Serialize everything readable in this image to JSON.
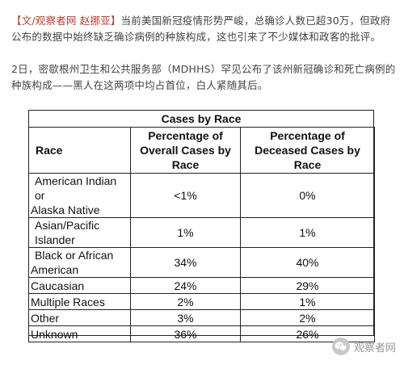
{
  "article": {
    "paragraph1_source": "【文/观察者网 赵挪亚】",
    "paragraph1_body": "当前美国新冠疫情形势严峻，总确诊人数已超30万，但政府公布的数据中始终缺乏确诊病例的种族构成，这也引来了不少媒体和政客的批评。",
    "paragraph2": "2日，密歇根州卫生和公共服务部（MDHHS）罕见公布了该州新冠确诊和死亡病例的种族构成——黑人在这两项中均占首位，白人紧随其后。"
  },
  "table": {
    "caption": "Cases by Race",
    "headers": {
      "race": "Race",
      "overall": "Percentage of Overall Cases by Race",
      "deceased": "Percentage of Deceased Cases by Race"
    },
    "rows": [
      {
        "race_line1": "American Indian or",
        "race_line2": "Alaska Native",
        "overall": "<1%",
        "deceased": "0%"
      },
      {
        "race_line1": "Asian/Pacific",
        "race_line2": "Islander",
        "overall": "1%",
        "deceased": "1%"
      },
      {
        "race_line1": "Black or African",
        "race_line2": "American",
        "overall": "34%",
        "deceased": "40%"
      },
      {
        "race": "Caucasian",
        "overall": "24%",
        "deceased": "29%"
      },
      {
        "race": "Multiple Races",
        "overall": "2%",
        "deceased": "1%"
      },
      {
        "race": "Other",
        "overall": "3%",
        "deceased": "2%"
      },
      {
        "race": "Unknown",
        "overall": "36%",
        "deceased": "26%"
      }
    ]
  },
  "watermark": {
    "text": "观察者网",
    "icon": "wechat-account-icon"
  }
}
